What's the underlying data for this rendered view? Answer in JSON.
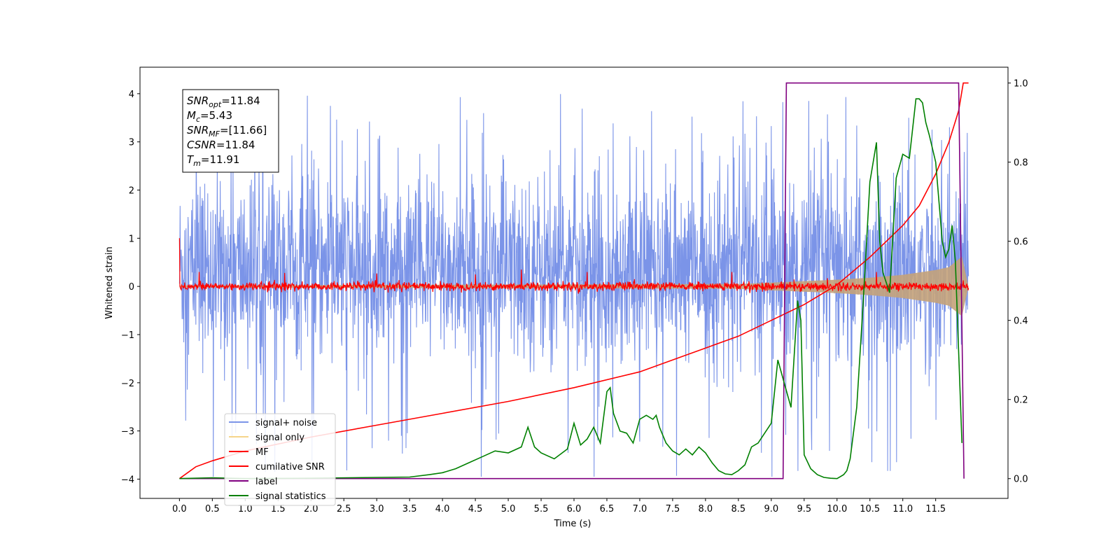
{
  "chart_data": {
    "type": "line",
    "xlabel": "Time (s)",
    "ylabel": "Whitened strain",
    "xlim": [
      -0.6,
      12.6
    ],
    "ylim": [
      -4.4,
      4.55
    ],
    "y2lim": [
      -0.05,
      1.04
    ],
    "xticks": [
      "0.0",
      "0.5",
      "1.0",
      "1.5",
      "2.0",
      "2.5",
      "3.0",
      "3.5",
      "4.0",
      "4.5",
      "5.0",
      "5.5",
      "6.0",
      "6.5",
      "7.0",
      "7.5",
      "8.0",
      "8.5",
      "9.0",
      "9.5",
      "10.0",
      "10.5",
      "11.0",
      "11.5"
    ],
    "yticks": [
      "4",
      "3",
      "2",
      "1",
      "0",
      "−1",
      "−2",
      "−3",
      "−4"
    ],
    "y2ticks": [
      "1.0",
      "0.8",
      "0.6",
      "0.4",
      "0.2",
      "0.0"
    ],
    "annotation": {
      "snr_opt": {
        "name": "SNR",
        "sub": "opt",
        "value": "=11.84"
      },
      "mc": {
        "name": "M",
        "sub": "c",
        "value": "=5.43"
      },
      "snr_mf": {
        "name": "SNR",
        "sub": "MF",
        "value": "=[11.66]"
      },
      "csnr": {
        "name": "CSNR",
        "value": "=11.84"
      },
      "tm": {
        "name": "T",
        "sub": "m",
        "value": "=11.91"
      }
    },
    "legend": {
      "position": "lower-left",
      "entries": [
        {
          "label": "signal+ noise",
          "color": "#7b94e8"
        },
        {
          "label": "signal only",
          "color": "#f5d48a"
        },
        {
          "label": "MF",
          "color": "#ff0000"
        },
        {
          "label": "cumilative SNR",
          "color": "#ff0000"
        },
        {
          "label": "label",
          "color": "#800080"
        },
        {
          "label": "signal statistics",
          "color": "#008000"
        }
      ]
    },
    "series": [
      {
        "name": "signal+ noise",
        "axis": "left",
        "color": "#7b94e8",
        "description": "noise band",
        "x_range": [
          0.0,
          12.0
        ],
        "typical_range": [
          -1.8,
          2.5
        ],
        "max_range": [
          -3.95,
          4.15
        ]
      },
      {
        "name": "signal only",
        "axis": "left",
        "color": "#c4a27a",
        "description": "chirp envelope",
        "x": [
          0.0,
          8.5,
          9.0,
          9.5,
          10.0,
          10.5,
          11.0,
          11.5,
          11.7,
          11.9,
          12.0
        ],
        "amplitude": [
          0.02,
          0.05,
          0.08,
          0.11,
          0.14,
          0.18,
          0.24,
          0.34,
          0.4,
          0.62,
          0.0
        ]
      },
      {
        "name": "MF",
        "axis": "left",
        "color": "#ff0000",
        "x_range": [
          0.0,
          12.0
        ],
        "start_value": 1.0,
        "typical_range": [
          -0.12,
          0.15
        ],
        "spikes": [
          {
            "x": 0.3,
            "y": 0.3
          },
          {
            "x": 1.6,
            "y": 0.28
          },
          {
            "x": 3.0,
            "y": 0.27
          },
          {
            "x": 4.5,
            "y": 0.25
          },
          {
            "x": 5.2,
            "y": 0.35
          },
          {
            "x": 6.2,
            "y": 0.3
          },
          {
            "x": 8.4,
            "y": 0.3
          },
          {
            "x": 10.6,
            "y": 0.3
          }
        ]
      },
      {
        "name": "cumilative SNR",
        "axis": "right",
        "color": "#ff0000",
        "x": [
          0.0,
          0.25,
          0.5,
          1.0,
          2.0,
          3.0,
          4.0,
          5.0,
          6.0,
          7.0,
          8.0,
          8.5,
          9.0,
          9.5,
          10.0,
          10.5,
          11.0,
          11.25,
          11.5,
          11.7,
          11.85,
          11.92,
          12.0
        ],
        "y": [
          0.0,
          0.03,
          0.045,
          0.07,
          0.105,
          0.135,
          0.165,
          0.195,
          0.23,
          0.27,
          0.33,
          0.36,
          0.4,
          0.44,
          0.49,
          0.56,
          0.64,
          0.69,
          0.77,
          0.85,
          0.93,
          1.0,
          1.0
        ]
      },
      {
        "name": "label",
        "axis": "right",
        "color": "#800080",
        "x": [
          0.0,
          9.18,
          9.23,
          11.85,
          11.93
        ],
        "y": [
          0.0,
          0.0,
          1.0,
          1.0,
          0.0
        ]
      },
      {
        "name": "signal statistics",
        "axis": "right",
        "color": "#008000",
        "x": [
          0.0,
          0.5,
          1.0,
          2.0,
          3.0,
          3.5,
          3.8,
          4.0,
          4.2,
          4.4,
          4.6,
          4.8,
          5.0,
          5.2,
          5.3,
          5.4,
          5.5,
          5.7,
          5.9,
          6.0,
          6.1,
          6.2,
          6.3,
          6.4,
          6.5,
          6.55,
          6.6,
          6.7,
          6.8,
          6.9,
          7.0,
          7.1,
          7.2,
          7.25,
          7.3,
          7.4,
          7.5,
          7.6,
          7.7,
          7.8,
          7.9,
          8.0,
          8.1,
          8.2,
          8.3,
          8.4,
          8.5,
          8.6,
          8.7,
          8.8,
          9.0,
          9.1,
          9.2,
          9.3,
          9.4,
          9.45,
          9.5,
          9.6,
          9.7,
          9.8,
          9.9,
          10.0,
          10.1,
          10.15,
          10.2,
          10.3,
          10.4,
          10.5,
          10.6,
          10.65,
          10.7,
          10.8,
          10.9,
          11.0,
          11.1,
          11.2,
          11.25,
          11.3,
          11.35,
          11.4,
          11.5,
          11.6,
          11.65,
          11.7,
          11.75,
          11.8,
          11.9
        ],
        "y": [
          0.0,
          0.002,
          0.0,
          0.001,
          0.003,
          0.004,
          0.01,
          0.015,
          0.025,
          0.04,
          0.055,
          0.07,
          0.065,
          0.08,
          0.13,
          0.08,
          0.065,
          0.05,
          0.075,
          0.14,
          0.085,
          0.1,
          0.13,
          0.09,
          0.22,
          0.23,
          0.165,
          0.12,
          0.115,
          0.09,
          0.15,
          0.16,
          0.15,
          0.16,
          0.13,
          0.09,
          0.07,
          0.06,
          0.075,
          0.06,
          0.08,
          0.065,
          0.04,
          0.02,
          0.012,
          0.01,
          0.02,
          0.035,
          0.08,
          0.09,
          0.14,
          0.3,
          0.24,
          0.18,
          0.45,
          0.4,
          0.06,
          0.025,
          0.01,
          0.003,
          0.001,
          0.0,
          0.01,
          0.02,
          0.05,
          0.18,
          0.45,
          0.75,
          0.85,
          0.6,
          0.52,
          0.47,
          0.76,
          0.82,
          0.81,
          0.96,
          0.96,
          0.95,
          0.9,
          0.87,
          0.8,
          0.6,
          0.56,
          0.58,
          0.64,
          0.55,
          0.09
        ]
      }
    ]
  }
}
